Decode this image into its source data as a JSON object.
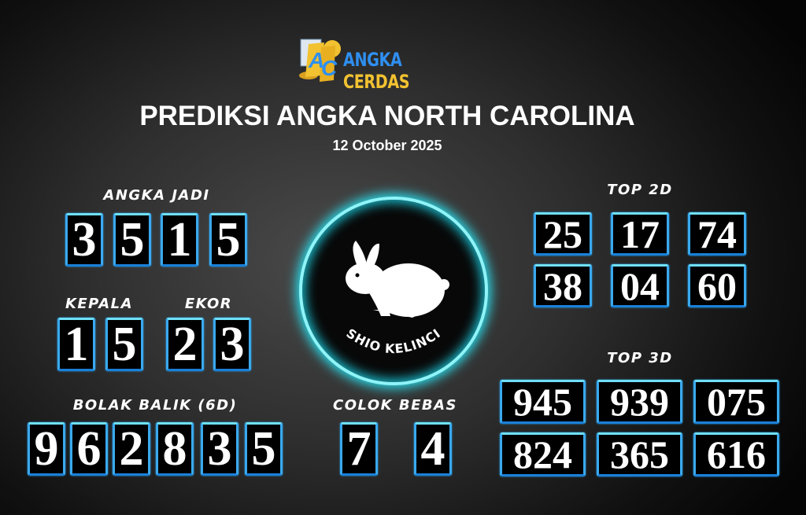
{
  "logo": {
    "part1": "ANGKA",
    "part2": "CERDAS",
    "mark": "AC"
  },
  "title": "PREDIKSI ANGKA NORTH CAROLINA",
  "date": "12 October 2025",
  "angka_jadi": {
    "label": "ANGKA JADI",
    "digits": [
      "3",
      "5",
      "1",
      "5"
    ]
  },
  "kepala": {
    "label": "KEPALA",
    "digits": [
      "1",
      "5"
    ]
  },
  "ekor": {
    "label": "EKOR",
    "digits": [
      "2",
      "3"
    ]
  },
  "bolak_balik": {
    "label": "BOLAK BALIK (6D)",
    "digits": [
      "9",
      "6",
      "2",
      "8",
      "3",
      "5"
    ]
  },
  "colok_bebas": {
    "label": "COLOK BEBAS",
    "digits": [
      "7",
      "4"
    ]
  },
  "shio": {
    "label": "SHIO KELINCI",
    "icon": "rabbit-icon"
  },
  "top2d": {
    "label": "TOP 2D",
    "numbers": [
      "25",
      "17",
      "74",
      "38",
      "04",
      "60"
    ]
  },
  "top3d": {
    "label": "TOP 3D",
    "numbers": [
      "945",
      "939",
      "075",
      "824",
      "365",
      "616"
    ]
  },
  "colors": {
    "box_border": "#3aa9ee",
    "glow": "#2ad8e6",
    "logo_blue": "#2f8ff0",
    "logo_gold": "#f2c230"
  }
}
